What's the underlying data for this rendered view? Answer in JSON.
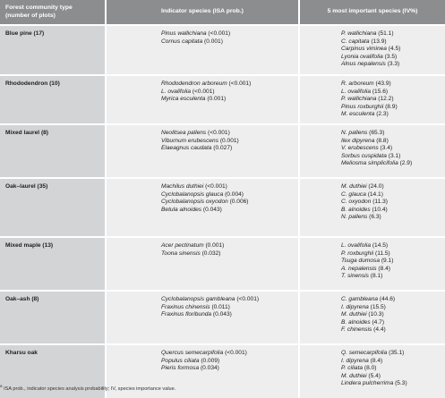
{
  "headers": {
    "col1_line1": "Forest community type",
    "col1_line2": "(number of plots)",
    "col2": "Indicator species (ISA prob.)",
    "col3": "5 most important species (IV%)"
  },
  "rows": [
    {
      "type": "Blue pine (17)",
      "indicators": [
        {
          "name": "Pinus wallichiana",
          "val": " (<0.001)"
        },
        {
          "name": "Cornus capitata",
          "val": " (0.001)"
        }
      ],
      "important": [
        {
          "name": "P. wallichiana",
          "val": " (51.1)"
        },
        {
          "name": "C. capitata",
          "val": " (13.9)"
        },
        {
          "name": "Carpinus viminea",
          "val": " (4.5)"
        },
        {
          "name": "Lyonia ovalifolia",
          "val": " (3.5)"
        },
        {
          "name": "Alnus nepalensis",
          "val": " (3.3)"
        }
      ]
    },
    {
      "type": "Rhododendron (10)",
      "indicators": [
        {
          "name": "Rhododendron arboreum",
          "val": " (<0.001)"
        },
        {
          "name": "L. ovalifolia",
          "val": " (<0.001)"
        },
        {
          "name": "Myrica esculenta",
          "val": " (0.001)"
        }
      ],
      "important": [
        {
          "name": "R. arboreum",
          "val": " (43.9)"
        },
        {
          "name": "L. ovalifolia",
          "val": " (15.6)"
        },
        {
          "name": "P. wallichiana",
          "val": " (12.2)"
        },
        {
          "name": "Pinus roxburghii",
          "val": " (8.9)"
        },
        {
          "name": "M. esculenta",
          "val": " (2.3)"
        }
      ]
    },
    {
      "type": "Mixed laurel (8)",
      "indicators": [
        {
          "name": "Neolitsea pallens",
          "val": " (<0.001)"
        },
        {
          "name": "Viburnum erubescens",
          "val": " (0.001)"
        },
        {
          "name": "Elaeagnus caudata",
          "val": " (0.027)"
        }
      ],
      "important": [
        {
          "name": "N. pallens",
          "val": " (65.3)"
        },
        {
          "name": "Ilex dipyrena",
          "val": " (8.8)"
        },
        {
          "name": "V. erubescens",
          "val": " (3.4)"
        },
        {
          "name": "Sorbus cuspidata",
          "val": " (3.1)"
        },
        {
          "name": "Meliosma simplicifolia",
          "val": " (2.9)"
        }
      ]
    },
    {
      "type": "Oak–laurel (35)",
      "indicators": [
        {
          "name": "Machilus duthiei",
          "val": " (<0.001)"
        },
        {
          "name": "Cyclobalanopsis glauca",
          "val": " (0.004)"
        },
        {
          "name": "Cyclobalanopsis oxyodon",
          "val": " (0.006)"
        },
        {
          "name": "Betula alnoides",
          "val": " (0.043)"
        }
      ],
      "important": [
        {
          "name": "M. duthiei",
          "val": " (24.0)"
        },
        {
          "name": "C. glauca",
          "val": " (14.1)"
        },
        {
          "name": "C. oxyodon",
          "val": " (11.3)"
        },
        {
          "name": "B. alnoides",
          "val": " (10.4)"
        },
        {
          "name": "N. pallens",
          "val": " (6.3)"
        }
      ]
    },
    {
      "type": "Mixed maple (13)",
      "indicators": [
        {
          "name": "Acer pectinatum",
          "val": " (0.001)"
        },
        {
          "name": "Toona sinensis",
          "val": " (0.032)"
        }
      ],
      "important": [
        {
          "name": "L. ovalifolia",
          "val": " (14.5)"
        },
        {
          "name": "P. roxburghii",
          "val": " (11.5)"
        },
        {
          "name": "Tsuga dumosa",
          "val": " (9.1)"
        },
        {
          "name": "A. nepalensis",
          "val": " (8.4)"
        },
        {
          "name": "T. sinensis",
          "val": " (8.1)"
        }
      ]
    },
    {
      "type": "Oak–ash (8)",
      "indicators": [
        {
          "name": "Cyclobalanopsis gambleana",
          "val": " (<0.001)"
        },
        {
          "name": "Fraxinus chinensis",
          "val": " (0.011)"
        },
        {
          "name": "Fraxinus floribunda",
          "val": " (0.043)"
        }
      ],
      "important": [
        {
          "name": "C. gambleana",
          "val": " (44.6)"
        },
        {
          "name": "I. dipyrena",
          "val": " (15.5)"
        },
        {
          "name": "M. duthiei",
          "val": " (10.3)"
        },
        {
          "name": "B. alnoides",
          "val": " (4.7)"
        },
        {
          "name": "F. chinensis",
          "val": " (4.4)"
        }
      ]
    },
    {
      "type": "Kharsu oak",
      "indicators": [
        {
          "name": "Quercus semecarpifolia",
          "val": " (<0.001)"
        },
        {
          "name": "Populus ciliata",
          "val": " (0.009)"
        },
        {
          "name": "Pieris formosa",
          "val": " (0.034)"
        }
      ],
      "important": [
        {
          "name": "Q. semecarpifolia",
          "val": " (35.1)"
        },
        {
          "name": "I. dipyrena",
          "val": " (8.4)"
        },
        {
          "name": "P. ciliata",
          "val": " (8.0)"
        },
        {
          "name": "M. duthiei",
          "val": " (5.4)"
        },
        {
          "name": "Lindera pulcherrima",
          "val": " (5.3)"
        }
      ]
    }
  ],
  "footnote": {
    "mark": "a",
    "text": "ISA prob., indicator species analysis probability; IV, species importance value."
  }
}
